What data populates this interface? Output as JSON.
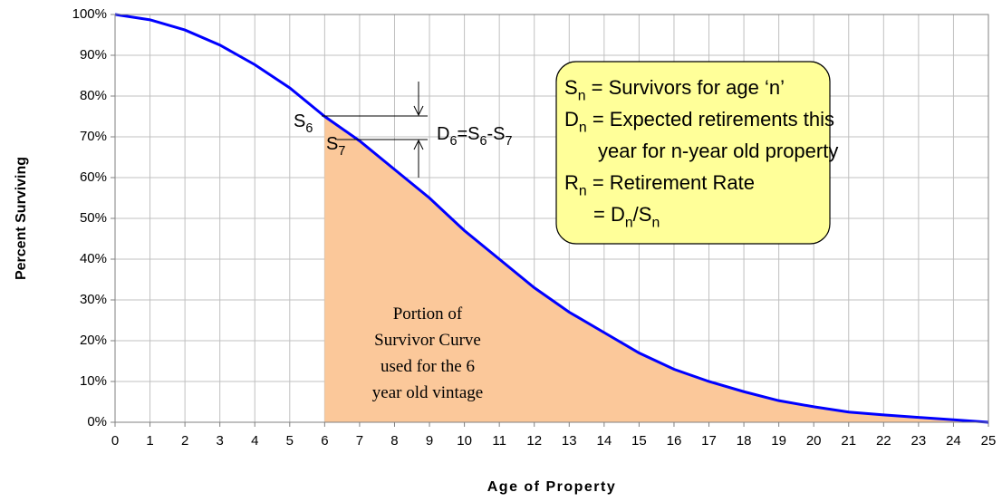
{
  "chart_data": {
    "type": "line",
    "y_label": "Percent Surviving",
    "x_label": "Age of Property",
    "x": [
      0,
      1,
      2,
      3,
      4,
      5,
      6,
      7,
      8,
      9,
      10,
      11,
      12,
      13,
      14,
      15,
      16,
      17,
      18,
      19,
      20,
      21,
      22,
      23,
      24,
      25
    ],
    "series": [
      {
        "color": "#0000ff",
        "values": [
          100,
          98.7,
          96.2,
          92.5,
          87.7,
          82,
          75,
          69,
          62,
          55,
          47,
          40,
          33,
          27,
          22,
          17,
          13,
          10,
          7.5,
          5.3,
          3.8,
          2.5,
          1.8,
          1.2,
          0.6,
          0
        ]
      }
    ],
    "shade_from": 6,
    "shade_color": "#fbc89a",
    "xlim": [
      0,
      25
    ],
    "xticks": [
      0,
      1,
      2,
      3,
      4,
      5,
      6,
      7,
      8,
      9,
      10,
      11,
      12,
      13,
      14,
      15,
      16,
      17,
      18,
      19,
      20,
      21,
      22,
      23,
      24,
      25
    ],
    "ylim": [
      0,
      100
    ],
    "yticks": [
      {
        "value": 0,
        "label": "0%"
      },
      {
        "value": 10,
        "label": "10%"
      },
      {
        "value": 20,
        "label": "20%"
      },
      {
        "value": 30,
        "label": "30%"
      },
      {
        "value": 40,
        "label": "40%"
      },
      {
        "value": 50,
        "label": "50%"
      },
      {
        "value": 60,
        "label": "60%"
      },
      {
        "value": 70,
        "label": "70%"
      },
      {
        "value": 80,
        "label": "80%"
      },
      {
        "value": 90,
        "label": "90%"
      },
      {
        "value": 100,
        "label": "100%"
      }
    ],
    "grid": true,
    "s6_label": [
      "S",
      "6"
    ],
    "s7_label": [
      "S",
      "7"
    ],
    "d6_label": [
      "D",
      "6",
      "=S",
      "6",
      "-S",
      "7"
    ],
    "shade_text": [
      "Portion of",
      "Survivor Curve",
      "used for the 6",
      "year old vintage"
    ],
    "box_lines": [
      [
        "S",
        "n",
        " = Survivors for age ‘n’"
      ],
      [
        "D",
        "n",
        " = Expected retirements this"
      ],
      [
        "year for n-year old property"
      ],
      [
        "R",
        "n",
        " = Retirement Rate"
      ],
      [
        "= D",
        "n",
        "/S",
        "n"
      ]
    ]
  }
}
